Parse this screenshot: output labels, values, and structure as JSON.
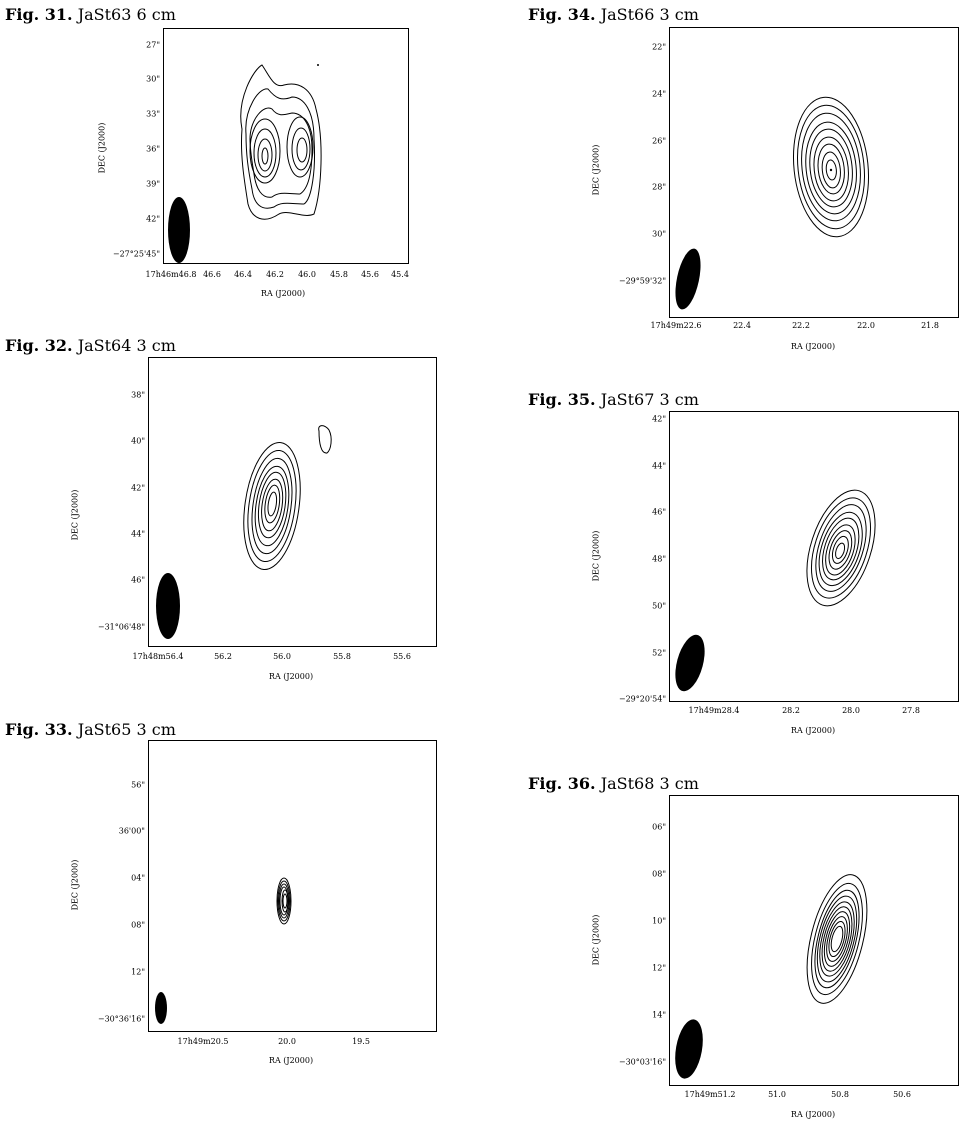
{
  "figures": [
    {
      "id": "fig31",
      "fig_label": "Fig. 31.",
      "title": "JaSt63 6 cm",
      "xlabel": "RA (J2000)",
      "ylabel": "DEC (J2000)",
      "xticks": [
        "17h46m46.8",
        "46.6",
        "46.4",
        "46.2",
        "46.0",
        "45.8",
        "45.6",
        "45.4"
      ],
      "yticks": [
        "27\"",
        "30\"",
        "33\"",
        "36\"",
        "39\"",
        "42\"",
        "−27°25'45\""
      ]
    },
    {
      "id": "fig32",
      "fig_label": "Fig. 32.",
      "title": "JaSt64 3 cm",
      "xlabel": "RA (J2000)",
      "ylabel": "DEC (J2000)",
      "xticks": [
        "17h48m56.4",
        "56.2",
        "56.0",
        "55.8",
        "55.6"
      ],
      "yticks": [
        "38\"",
        "40\"",
        "42\"",
        "44\"",
        "46\"",
        "−31°06'48\""
      ]
    },
    {
      "id": "fig33",
      "fig_label": "Fig. 33.",
      "title": "JaSt65 3 cm",
      "xlabel": "RA (J2000)",
      "ylabel": "DEC (J2000)",
      "xticks": [
        "17h49m20.5",
        "20.0",
        "19.5"
      ],
      "yticks": [
        "56\"",
        "36'00\"",
        "04\"",
        "08\"",
        "12\"",
        "−30°36'16\""
      ]
    },
    {
      "id": "fig34",
      "fig_label": "Fig. 34.",
      "title": "JaSt66 3 cm",
      "xlabel": "RA (J2000)",
      "ylabel": "DEC (J2000)",
      "xticks": [
        "17h49m22.6",
        "22.4",
        "22.2",
        "22.0",
        "21.8"
      ],
      "yticks": [
        "22\"",
        "24\"",
        "26\"",
        "28\"",
        "30\"",
        "−29°59'32\""
      ]
    },
    {
      "id": "fig35",
      "fig_label": "Fig. 35.",
      "title": "JaSt67 3 cm",
      "xlabel": "RA (J2000)",
      "ylabel": "DEC (J2000)",
      "xticks": [
        "17h49m28.4",
        "28.2",
        "28.0",
        "27.8"
      ],
      "yticks": [
        "42\"",
        "44\"",
        "46\"",
        "48\"",
        "50\"",
        "52\"",
        "−29°20'54\""
      ]
    },
    {
      "id": "fig36",
      "fig_label": "Fig. 36.",
      "title": "JaSt68 3 cm",
      "xlabel": "RA (J2000)",
      "ylabel": "DEC (J2000)",
      "xticks": [
        "17h49m51.2",
        "51.0",
        "50.8",
        "50.6"
      ],
      "yticks": [
        "06\"",
        "08\"",
        "10\"",
        "12\"",
        "14\"",
        "−30°03'16\""
      ]
    }
  ]
}
